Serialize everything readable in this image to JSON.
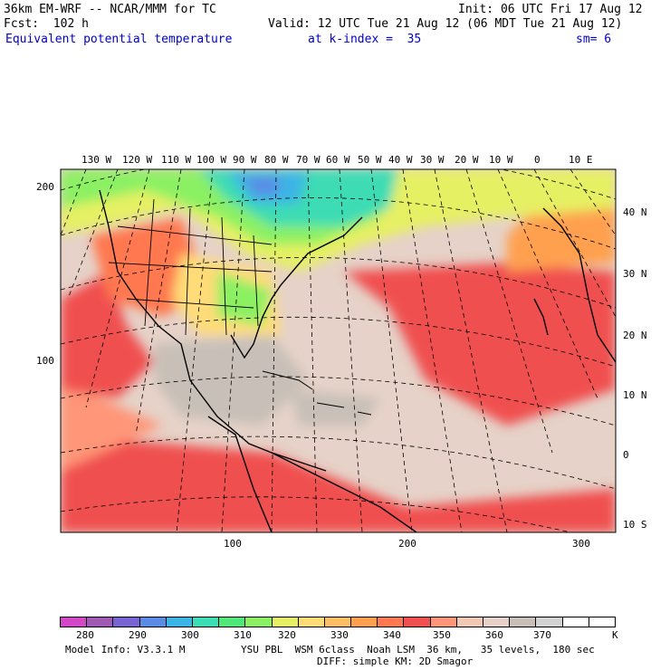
{
  "header": {
    "model": "36km EM-WRF -- NCAR/MMM for TC",
    "init": "Init: 06 UTC Fri 17 Aug 12",
    "forecast": "Fcst:  102 h",
    "valid": "Valid: 12 UTC Tue 21 Aug 12 (06 MDT Tue 21 Aug 12)",
    "field": "Equivalent potential temperature",
    "level": "at k-index =  35",
    "smoothing": "sm= 6"
  },
  "top_longitudes": [
    "130 W",
    "120 W",
    "110 W",
    "100 W",
    "90 W",
    "80 W",
    "70 W",
    "60 W",
    "50 W",
    "40 W",
    "30 W",
    "20 W",
    "10 W",
    "0",
    "10 E"
  ],
  "right_latitudes": [
    "40 N",
    "30 N",
    "20 N",
    "10 N",
    "0",
    "10 S"
  ],
  "left_grid": [
    "200",
    "100"
  ],
  "bottom_grid": [
    "100",
    "200",
    "300"
  ],
  "colorbar": {
    "colors": [
      "#d246c8",
      "#a05ab4",
      "#7864d2",
      "#5a8ce6",
      "#3cb4e6",
      "#3cdcb4",
      "#50e678",
      "#8cf064",
      "#e6f064",
      "#ffdc78",
      "#ffbe64",
      "#ffa050",
      "#ff7850",
      "#f05050",
      "#ff9678",
      "#f0c8b4",
      "#e6d2c8",
      "#c8c0b8",
      "#d2d2d2",
      "#ffffff",
      "#ffffff"
    ],
    "labels": [
      "280",
      "290",
      "300",
      "310",
      "320",
      "330",
      "340",
      "350",
      "360",
      "370"
    ],
    "unit": "K"
  },
  "footer": {
    "model_info": "Model Info: V3.3.1 M",
    "physics": "YSU PBL  WSM 6class  Noah LSM  36 km,   35 levels,  180 sec",
    "diffusion": "DIFF: simple KM: 2D Smagor"
  }
}
